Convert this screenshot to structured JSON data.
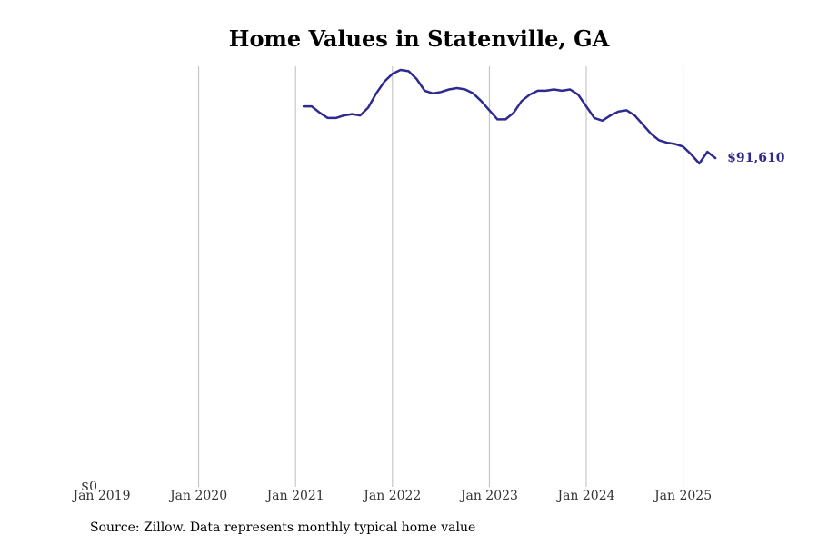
{
  "chart_data": {
    "type": "line",
    "title": "Home Values in Statenville, GA",
    "xlabel": "",
    "ylabel": "",
    "x_ticks": [
      "Jan 2019",
      "Jan 2020",
      "Jan 2021",
      "Jan 2022",
      "Jan 2023",
      "Jan 2024",
      "Jan 2025"
    ],
    "y_ticks": [
      "$0"
    ],
    "ylim": [
      0,
      100000
    ],
    "grid": "vertical",
    "line_color": "#2e2a8f",
    "end_label": "$91,610",
    "series": [
      {
        "x": [
          "2021-02",
          "2021-03",
          "2021-04",
          "2021-05",
          "2021-06",
          "2021-07",
          "2021-08",
          "2021-09",
          "2021-10",
          "2021-11",
          "2021-12",
          "2022-01",
          "2022-02",
          "2022-03",
          "2022-04",
          "2022-05",
          "2022-06",
          "2022-07",
          "2022-08",
          "2022-09",
          "2022-10",
          "2022-11",
          "2022-12",
          "2023-01",
          "2023-02",
          "2023-03",
          "2023-04",
          "2023-05",
          "2023-06",
          "2023-07",
          "2023-08",
          "2023-09",
          "2023-10",
          "2023-11",
          "2023-12",
          "2024-01",
          "2024-02",
          "2024-03",
          "2024-04",
          "2024-05",
          "2024-06",
          "2024-07",
          "2024-08",
          "2024-09",
          "2024-10",
          "2024-11",
          "2024-12",
          "2025-01",
          "2025-02",
          "2025-03",
          "2025-04",
          "2025-05"
        ],
        "values": [
          93600,
          93600,
          93350,
          93150,
          93150,
          93250,
          93300,
          93250,
          93550,
          94100,
          94550,
          94850,
          95000,
          94950,
          94650,
          94200,
          94100,
          94150,
          94250,
          94300,
          94250,
          94100,
          93800,
          93450,
          93100,
          93100,
          93350,
          93800,
          94050,
          94200,
          94200,
          94250,
          94200,
          94250,
          94050,
          93600,
          93150,
          93050,
          93250,
          93400,
          93450,
          93250,
          92900,
          92550,
          92300,
          92200,
          92150,
          92050,
          91750,
          91400,
          91850,
          91610
        ]
      }
    ]
  },
  "source": "Source: Zillow. Data represents monthly typical home value"
}
